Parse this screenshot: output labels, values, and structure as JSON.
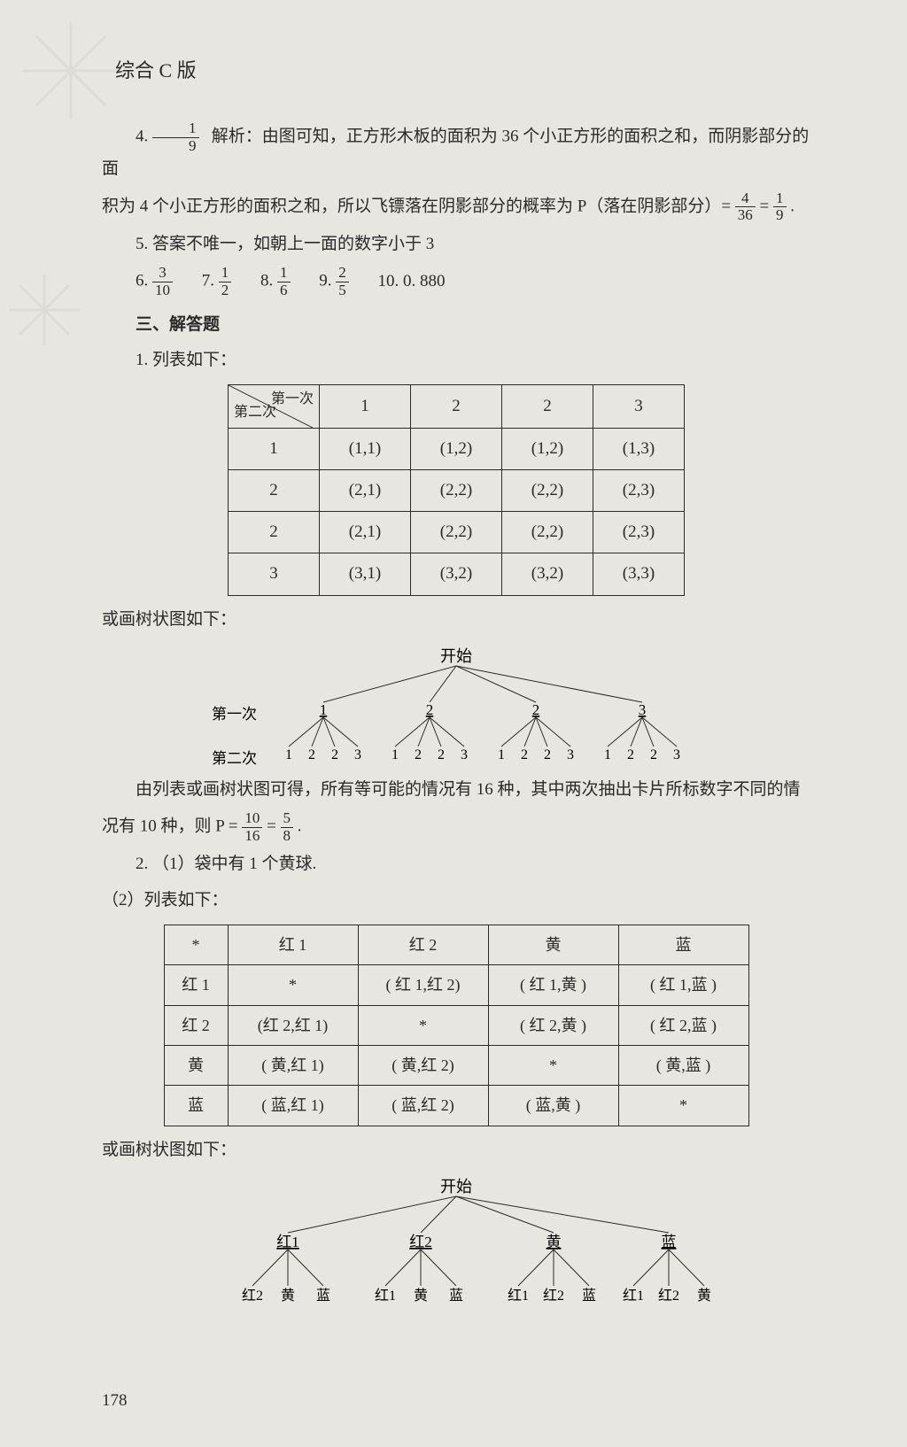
{
  "header": {
    "edition": "综合 C 版"
  },
  "q4": {
    "num": "4.",
    "ans_num": "1",
    "ans_den": "9",
    "analysis_label": "解析：",
    "line1": "由图可知，正方形木板的面积为 36 个小正方形的面积之和，而阴影部分的面",
    "line2a": "积为 4 个小正方形的面积之和，所以飞镖落在阴影部分的概率为 P（落在阴影部分）= ",
    "frac1_num": "4",
    "frac1_den": "36",
    "eq": " = ",
    "frac2_num": "1",
    "frac2_den": "9",
    "end": "."
  },
  "q5": {
    "text": "5. 答案不唯一，如朝上一面的数字小于 3"
  },
  "q6_10": {
    "q6": "6.",
    "q6_num": "3",
    "q6_den": "10",
    "q7": "7.",
    "q7_num": "1",
    "q7_den": "2",
    "q8": "8.",
    "q8_num": "1",
    "q8_den": "6",
    "q9": "9.",
    "q9_num": "2",
    "q9_den": "5",
    "q10": "10. 0. 880"
  },
  "section3": {
    "title": "三、解答题",
    "p1_label": "1. 列表如下：",
    "table1": {
      "diag_top": "第一次",
      "diag_bottom": "第二次",
      "cols": [
        "1",
        "2",
        "2",
        "3"
      ],
      "rows": [
        {
          "h": "1",
          "cells": [
            "(1,1)",
            "(1,2)",
            "(1,2)",
            "(1,3)"
          ]
        },
        {
          "h": "2",
          "cells": [
            "(2,1)",
            "(2,2)",
            "(2,2)",
            "(2,3)"
          ]
        },
        {
          "h": "2",
          "cells": [
            "(2,1)",
            "(2,2)",
            "(2,2)",
            "(2,3)"
          ]
        },
        {
          "h": "3",
          "cells": [
            "(3,1)",
            "(3,2)",
            "(3,2)",
            "(3,3)"
          ]
        }
      ]
    },
    "tree1_label": "或画树状图如下：",
    "tree1": {
      "start": "开始",
      "row1_label": "第一次",
      "row2_label": "第二次",
      "level1": [
        "1",
        "2",
        "2",
        "3"
      ],
      "level2_groups": [
        [
          "1",
          "2",
          "2",
          "3"
        ],
        [
          "1",
          "2",
          "2",
          "3"
        ],
        [
          "1",
          "2",
          "2",
          "3"
        ],
        [
          "1",
          "2",
          "2",
          "3"
        ]
      ]
    },
    "para_a": "由列表或画树状图可得，所有等可能的情况有 16 种，其中两次抽出卡片所标数字不同的情",
    "para_b_pre": "况有 10 种，则 P = ",
    "para_b_num1": "10",
    "para_b_den1": "16",
    "para_b_eq": " = ",
    "para_b_num2": "5",
    "para_b_den2": "8",
    "para_b_end": ".",
    "p2_1": "2. （1）袋中有 1 个黄球.",
    "p2_2": "（2）列表如下：",
    "table2": {
      "header": [
        "*",
        "红 1",
        "红 2",
        "黄",
        "蓝"
      ],
      "rows": [
        {
          "h": "红 1",
          "cells": [
            "*",
            "( 红 1,红 2)",
            "( 红 1,黄 )",
            "( 红 1,蓝 )"
          ]
        },
        {
          "h": "红 2",
          "cells": [
            "(红 2,红 1)",
            "*",
            "( 红 2,黄 )",
            "( 红 2,蓝 )"
          ]
        },
        {
          "h": "黄",
          "cells": [
            "( 黄,红 1)",
            "( 黄,红 2)",
            "*",
            "( 黄,蓝 )"
          ]
        },
        {
          "h": "蓝",
          "cells": [
            "( 蓝,红 1)",
            "( 蓝,红 2)",
            "( 蓝,黄 )",
            "*"
          ]
        }
      ]
    },
    "tree2_label": "或画树状图如下：",
    "tree2": {
      "start": "开始",
      "level1": [
        "红1",
        "红2",
        "黄",
        "蓝"
      ],
      "level2_groups": [
        [
          "红2",
          "黄",
          "蓝"
        ],
        [
          "红1",
          "黄",
          "蓝"
        ],
        [
          "红1",
          "红2",
          "蓝"
        ],
        [
          "红1",
          "红2",
          "黄"
        ]
      ]
    }
  },
  "page_number": "178",
  "style": {
    "bg": "#e8e6e0",
    "text_color": "#2a2a2a",
    "table_border": "#2a2a2a"
  }
}
